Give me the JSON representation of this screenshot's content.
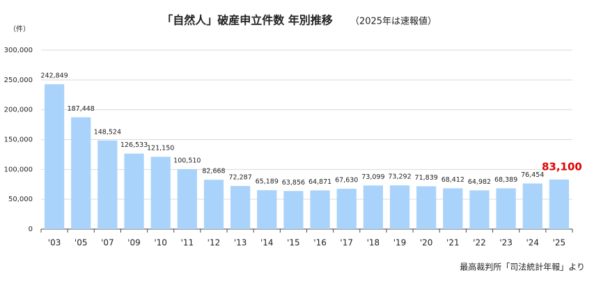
{
  "chart_data": {
    "type": "bar",
    "title": "「自然人」破産申立件数 年別推移",
    "subtitle": "（2025年は速報値）",
    "y_label": "（件）",
    "source": "最高裁判所「司法統計年報」より",
    "categories": [
      "'03",
      "'05",
      "'07",
      "'09",
      "'10",
      "'11",
      "'12",
      "'13",
      "'14",
      "'15",
      "'16",
      "'17",
      "'18",
      "'19",
      "'20",
      "'21",
      "'22",
      "'23",
      "'24",
      "'25"
    ],
    "values": [
      242849,
      187448,
      148524,
      126533,
      121150,
      100510,
      82668,
      72287,
      65189,
      63856,
      64871,
      67630,
      73099,
      73292,
      71839,
      68412,
      64982,
      68389,
      76454,
      83100
    ],
    "value_labels": [
      "242,849",
      "187,448",
      "148,524",
      "126,533",
      "121,150",
      "100,510",
      "82,668",
      "72,287",
      "65,189",
      "63,856",
      "64,871",
      "67,630",
      "73,099",
      "73,292",
      "71,839",
      "68,412",
      "64,982",
      "68,389",
      "76,454",
      "83,100"
    ],
    "color": "#a9d3fb",
    "highlight_color": "#e00000",
    "ylim": [
      0,
      300000
    ],
    "yticks": [
      0,
      {
        "value": 50000,
        "label": "50,000"
      },
      {
        "value": 100000,
        "label": "100,000"
      },
      {
        "value": 150000,
        "label": "150,000"
      },
      {
        "value": 200000,
        "label": "200,000"
      },
      {
        "value": 250000,
        "label": "250,000"
      },
      {
        "value": 300000,
        "label": "300,000"
      }
    ],
    "grid": true
  }
}
